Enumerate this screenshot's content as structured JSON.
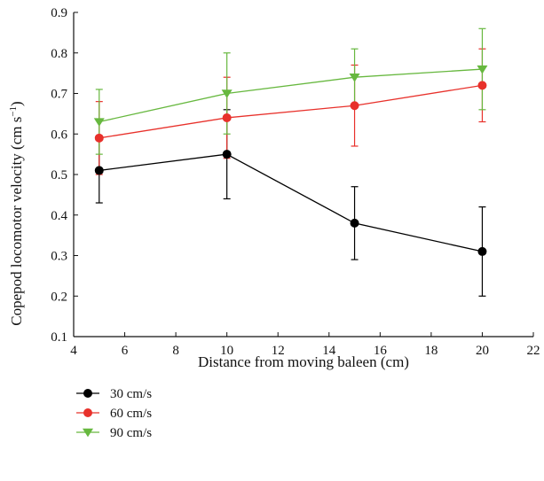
{
  "chart_data": {
    "type": "line",
    "title": "",
    "xlabel": "Distance from moving baleen (cm)",
    "ylabel_main": "Copepod locomotor velocity (cm s",
    "ylabel_sup": "−1",
    "ylabel_close": ")",
    "xlim": [
      4,
      22
    ],
    "ylim": [
      0.1,
      0.9
    ],
    "xticks": [
      "4",
      "6",
      "8",
      "10",
      "12",
      "14",
      "16",
      "18",
      "20",
      "22"
    ],
    "yticks": [
      "0.1",
      "0.2",
      "0.3",
      "0.4",
      "0.5",
      "0.6",
      "0.7",
      "0.8",
      "0.9"
    ],
    "grid": false,
    "legend_position": "below",
    "x": [
      5,
      10,
      15,
      20
    ],
    "series": [
      {
        "name": "30 cm/s",
        "color": "#000000",
        "marker": "circle",
        "values": [
          0.51,
          0.55,
          0.38,
          0.31
        ],
        "error": [
          0.08,
          0.11,
          0.09,
          0.11
        ]
      },
      {
        "name": "60 cm/s",
        "color": "#e8312b",
        "marker": "circle",
        "values": [
          0.59,
          0.64,
          0.67,
          0.72
        ],
        "error": [
          0.09,
          0.1,
          0.1,
          0.09
        ]
      },
      {
        "name": "90 cm/s",
        "color": "#67b83f",
        "marker": "triangle-down",
        "values": [
          0.63,
          0.7,
          0.74,
          0.76
        ],
        "error": [
          0.08,
          0.1,
          0.07,
          0.1
        ]
      }
    ]
  }
}
